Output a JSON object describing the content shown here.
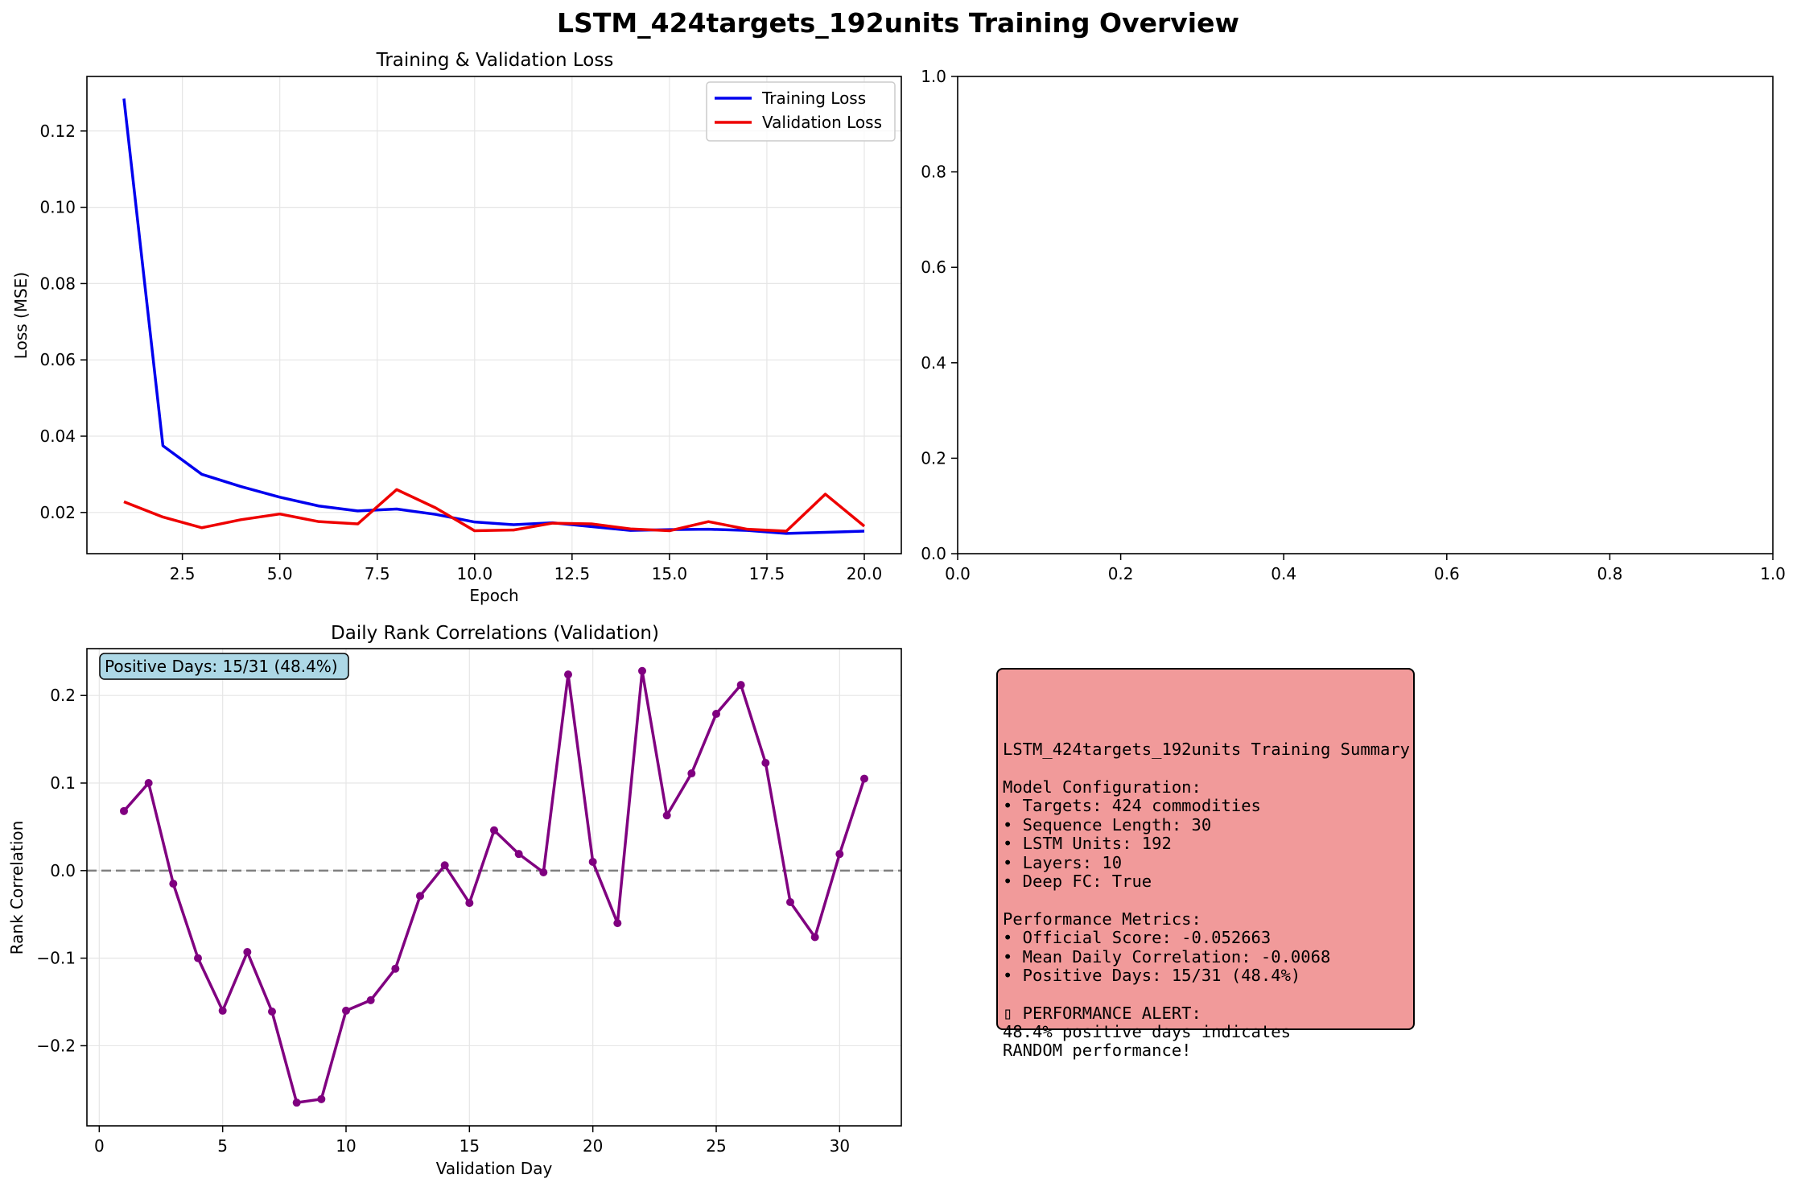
{
  "figure": {
    "suptitle": "LSTM_424targets_192units Training Overview"
  },
  "colors": {
    "training": "#0000ee",
    "validation": "#ee0000",
    "correlation": "#800080",
    "summary_bg": "#f19a9a",
    "badge_bg": "#add8e6"
  },
  "chart_data": [
    {
      "type": "line",
      "title": "Training & Validation Loss",
      "xlabel": "Epoch",
      "ylabel": "Loss (MSE)",
      "xlim": [
        0.05,
        20.95
      ],
      "ylim": [
        0.0092,
        0.1343
      ],
      "xticks": [
        2.5,
        5.0,
        7.5,
        10.0,
        12.5,
        15.0,
        17.5,
        20.0
      ],
      "xtick_labels": [
        "2.5",
        "5.0",
        "7.5",
        "10.0",
        "12.5",
        "15.0",
        "17.5",
        "20.0"
      ],
      "yticks": [
        0.02,
        0.04,
        0.06,
        0.08,
        0.1,
        0.12
      ],
      "ytick_labels": [
        "0.02",
        "0.04",
        "0.06",
        "0.08",
        "0.10",
        "0.12"
      ],
      "grid": true,
      "legend": "top-right",
      "x": [
        1,
        2,
        3,
        4,
        5,
        6,
        7,
        8,
        9,
        10,
        11,
        12,
        13,
        14,
        15,
        16,
        17,
        18,
        19,
        20
      ],
      "series": [
        {
          "name": "Training Loss",
          "color": "#0000ee",
          "values": [
            0.1285,
            0.0375,
            0.03,
            0.0268,
            0.024,
            0.0217,
            0.0204,
            0.0209,
            0.0195,
            0.0175,
            0.0168,
            0.0173,
            0.0163,
            0.0153,
            0.0155,
            0.0156,
            0.0153,
            0.0145,
            0.0148,
            0.0151
          ]
        },
        {
          "name": "Validation Loss",
          "color": "#ee0000",
          "values": [
            0.0228,
            0.0188,
            0.016,
            0.0181,
            0.0196,
            0.0176,
            0.017,
            0.026,
            0.0212,
            0.0152,
            0.0154,
            0.0172,
            0.017,
            0.0157,
            0.0152,
            0.0176,
            0.0156,
            0.0151,
            0.0248,
            0.0164
          ]
        }
      ]
    },
    {
      "type": "line",
      "title": "",
      "xlabel": "",
      "ylabel": "",
      "xlim": [
        0,
        1
      ],
      "ylim": [
        0,
        1
      ],
      "xticks": [
        0,
        0.2,
        0.4,
        0.6,
        0.8,
        1.0
      ],
      "xtick_labels": [
        "0.0",
        "0.2",
        "0.4",
        "0.6",
        "0.8",
        "1.0"
      ],
      "yticks": [
        0,
        0.2,
        0.4,
        0.6,
        0.8,
        1.0
      ],
      "ytick_labels": [
        "0.0",
        "0.2",
        "0.4",
        "0.6",
        "0.8",
        "1.0"
      ],
      "grid": false,
      "series": []
    },
    {
      "type": "line",
      "title": "Daily Rank Correlations (Validation)",
      "xlabel": "Validation Day",
      "ylabel": "Rank Correlation",
      "xlim": [
        -0.5,
        32.5
      ],
      "ylim": [
        -0.2915,
        0.2535
      ],
      "xticks": [
        0,
        5,
        10,
        15,
        20,
        25,
        30
      ],
      "xtick_labels": [
        "0",
        "5",
        "10",
        "15",
        "20",
        "25",
        "30"
      ],
      "yticks": [
        -0.2,
        -0.1,
        0.0,
        0.1,
        0.2
      ],
      "ytick_labels": [
        "−0.2",
        "−0.1",
        "0.0",
        "0.1",
        "0.2"
      ],
      "grid": true,
      "reference_line": 0.0,
      "annotation": "Positive Days: 15/31 (48.4%)",
      "x": [
        1,
        2,
        3,
        4,
        5,
        6,
        7,
        8,
        9,
        10,
        11,
        12,
        13,
        14,
        15,
        16,
        17,
        18,
        19,
        20,
        21,
        22,
        23,
        24,
        25,
        26,
        27,
        28,
        29,
        30,
        31
      ],
      "series": [
        {
          "name": "",
          "color": "#800080",
          "values": [
            0.068,
            0.1,
            -0.015,
            -0.1,
            -0.16,
            -0.093,
            -0.161,
            -0.265,
            -0.261,
            -0.16,
            -0.148,
            -0.112,
            -0.029,
            0.006,
            -0.037,
            0.046,
            0.019,
            -0.002,
            0.224,
            0.01,
            -0.06,
            0.228,
            0.063,
            0.111,
            0.179,
            0.212,
            0.123,
            -0.036,
            -0.076,
            0.019,
            0.105
          ]
        }
      ]
    }
  ],
  "summary": {
    "lines": [
      "",
      "LSTM_424targets_192units Training Summary",
      "",
      "Model Configuration:",
      "• Targets: 424 commodities",
      "• Sequence Length: 30",
      "• LSTM Units: 192",
      "• Layers: 10",
      "• Deep FC: True",
      "",
      "Performance Metrics:",
      "• Official Score: -0.052663",
      "• Mean Daily Correlation: -0.0068",
      "• Positive Days: 15/31 (48.4%)",
      "",
      "▯ PERFORMANCE ALERT:",
      "48.4% positive days indicates",
      "RANDOM performance!"
    ]
  }
}
